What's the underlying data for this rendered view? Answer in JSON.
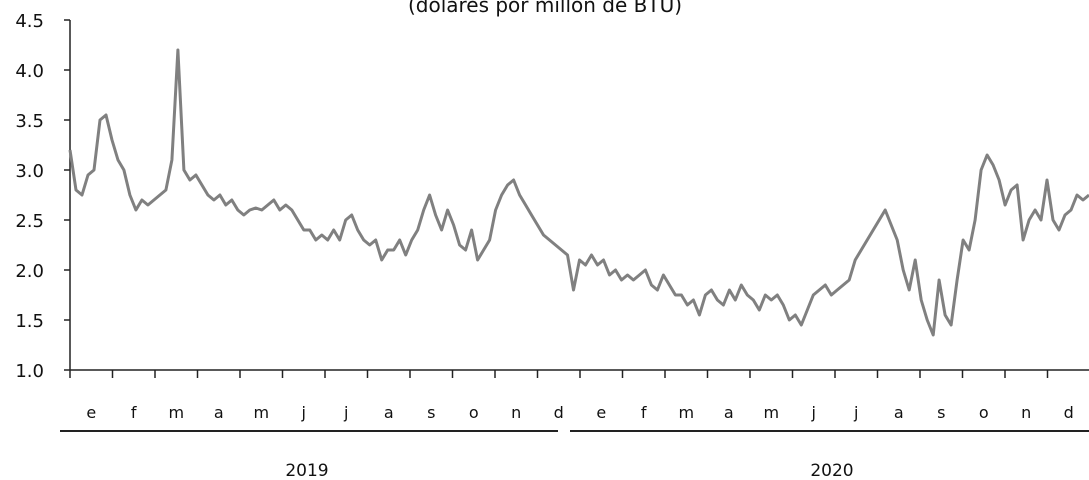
{
  "chart_data": {
    "type": "line",
    "title": "(dólares por millón de BTU)",
    "xlabel": "",
    "ylabel": "",
    "ylim": [
      1.0,
      4.5
    ],
    "yticks": [
      "1.0",
      "1.5",
      "2.0",
      "2.5",
      "3.0",
      "3.5",
      "4.0",
      "4.5"
    ],
    "months": [
      "e",
      "f",
      "m",
      "a",
      "m",
      "j",
      "j",
      "a",
      "s",
      "o",
      "n",
      "d",
      "e",
      "f",
      "m",
      "a",
      "m",
      "j",
      "j",
      "a",
      "s",
      "o",
      "n",
      "d"
    ],
    "years": [
      "2019",
      "2020"
    ],
    "grid": false,
    "line_color": "#808080",
    "series": [
      {
        "values": [
          3.2,
          2.8,
          2.75,
          2.95,
          3.0,
          3.5,
          3.55,
          3.3,
          3.1,
          3.0,
          2.75,
          2.6,
          2.7,
          2.65,
          2.7,
          2.75,
          2.8,
          3.1,
          4.2,
          3.0,
          2.9,
          2.95,
          2.85,
          2.75,
          2.7,
          2.75,
          2.65,
          2.7,
          2.6,
          2.55,
          2.6,
          2.62,
          2.6,
          2.65,
          2.7,
          2.6,
          2.65,
          2.6,
          2.5,
          2.4,
          2.4,
          2.3,
          2.35,
          2.3,
          2.4,
          2.3,
          2.5,
          2.55,
          2.4,
          2.3,
          2.25,
          2.3,
          2.1,
          2.2,
          2.2,
          2.3,
          2.15,
          2.3,
          2.4,
          2.6,
          2.75,
          2.55,
          2.4,
          2.6,
          2.45,
          2.25,
          2.2,
          2.4,
          2.1,
          2.2,
          2.3,
          2.6,
          2.75,
          2.85,
          2.9,
          2.75,
          2.65,
          2.55,
          2.45,
          2.35,
          2.3,
          2.25,
          2.2,
          2.15,
          1.8,
          2.1,
          2.05,
          2.15,
          2.05,
          2.1,
          1.95,
          2.0,
          1.9,
          1.95,
          1.9,
          1.95,
          2.0,
          1.85,
          1.8,
          1.95,
          1.85,
          1.75,
          1.75,
          1.65,
          1.7,
          1.55,
          1.75,
          1.8,
          1.7,
          1.65,
          1.8,
          1.7,
          1.85,
          1.75,
          1.7,
          1.6,
          1.75,
          1.7,
          1.75,
          1.65,
          1.5,
          1.55,
          1.45,
          1.6,
          1.75,
          1.8,
          1.85,
          1.75,
          1.8,
          1.85,
          1.9,
          2.1,
          2.2,
          2.3,
          2.4,
          2.5,
          2.6,
          2.45,
          2.3,
          2.0,
          1.8,
          2.1,
          1.7,
          1.5,
          1.35,
          1.9,
          1.55,
          1.45,
          1.9,
          2.3,
          2.2,
          2.5,
          3.0,
          3.15,
          3.05,
          2.9,
          2.65,
          2.8,
          2.85,
          2.3,
          2.5,
          2.6,
          2.5,
          2.9,
          2.5,
          2.4,
          2.55,
          2.6,
          2.75,
          2.7,
          2.75
        ]
      }
    ]
  }
}
